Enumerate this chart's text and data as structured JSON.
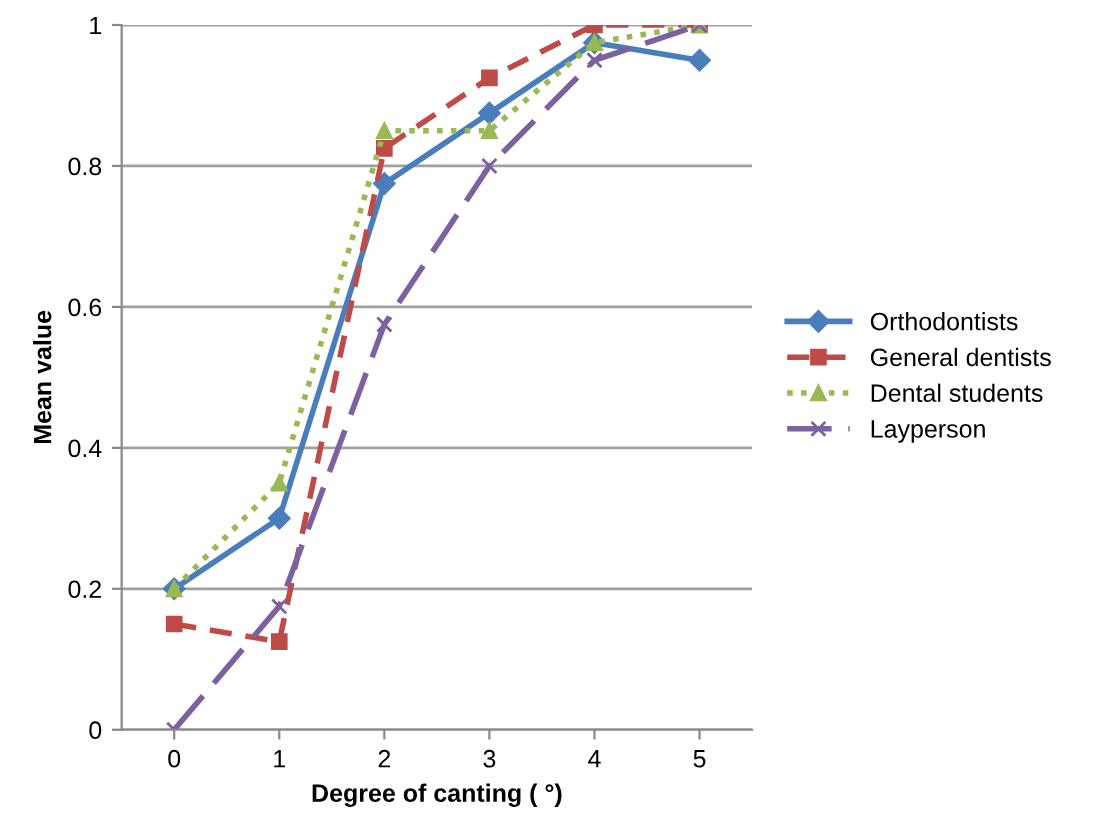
{
  "chart_data": {
    "type": "line",
    "xlabel": "Degree of canting ( °)",
    "ylabel": "Mean value",
    "categories": [
      "0",
      "1",
      "2",
      "3",
      "4",
      "5"
    ],
    "series": [
      {
        "name": "Orthodontists",
        "color": "#4a7ebb",
        "marker": "diamond",
        "line_style": "solid",
        "values": [
          0.2,
          0.3,
          0.775,
          0.875,
          0.975,
          0.95
        ]
      },
      {
        "name": "General dentists",
        "color": "#be4b48",
        "marker": "square",
        "line_style": "dashed",
        "values": [
          0.15,
          0.125,
          0.825,
          0.925,
          1,
          1
        ]
      },
      {
        "name": "Dental students",
        "color": "#98b954",
        "marker": "triangle",
        "line_style": "dotted",
        "values": [
          0.2,
          0.35,
          0.85,
          0.85,
          0.975,
          1
        ]
      },
      {
        "name": "Layperson",
        "color": "#7d60a0",
        "marker": "cross",
        "line_style": "longdash",
        "values": [
          0,
          0.175,
          0.575,
          0.8,
          0.95,
          1
        ]
      }
    ],
    "ylim": [
      0,
      1
    ],
    "yticks": [
      0,
      0.2,
      0.4,
      0.6,
      0.8,
      1
    ],
    "grid": "y",
    "legend": "right"
  }
}
